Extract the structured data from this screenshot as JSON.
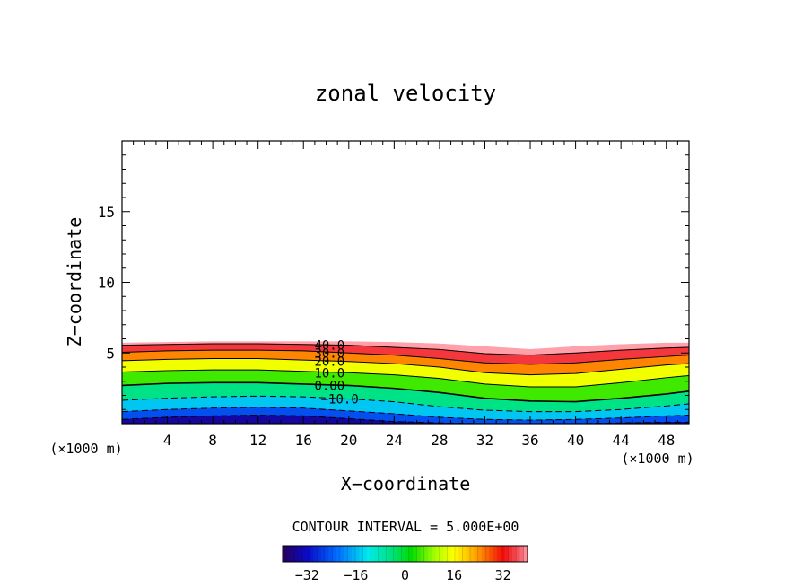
{
  "chart_data": {
    "type": "heatmap",
    "title": "zonal velocity",
    "xlabel": "X−coordinate",
    "ylabel": "Z−coordinate",
    "x_unit_left": "(×1000 m)",
    "x_unit_right": "(×1000 m)",
    "xlim": [
      0,
      50
    ],
    "ylim": [
      0,
      20
    ],
    "x_ticks": [
      "4",
      "8",
      "12",
      "16",
      "20",
      "24",
      "28",
      "32",
      "36",
      "40",
      "44",
      "48"
    ],
    "y_ticks": [
      "5",
      "10",
      "15"
    ],
    "contour_interval_text": "CONTOUR INTERVAL = 5.000E+00",
    "contour_labels": [
      "40.0",
      "30.0",
      "20.0",
      "10.0",
      "0.00",
      "−10.0"
    ],
    "colorbar": {
      "range": [
        -40,
        40
      ],
      "ticks": [
        "−32",
        "−16",
        "0",
        "16",
        "32"
      ]
    },
    "x": [
      0,
      4,
      8,
      12,
      16,
      20,
      24,
      28,
      32,
      36,
      40,
      44,
      48,
      50
    ],
    "top_of_field": [
      5.7,
      5.75,
      5.8,
      5.8,
      5.8,
      5.8,
      5.75,
      5.65,
      5.45,
      5.25,
      5.45,
      5.6,
      5.7,
      5.7
    ],
    "contours": [
      {
        "value": 40,
        "z": [
          5.55,
          5.6,
          5.65,
          5.65,
          5.6,
          5.55,
          5.4,
          5.25,
          4.95,
          4.85,
          5.0,
          5.2,
          5.35,
          5.4
        ]
      },
      {
        "value": 30,
        "z": [
          5.05,
          5.15,
          5.2,
          5.2,
          5.15,
          5.0,
          4.85,
          4.6,
          4.3,
          4.2,
          4.3,
          4.55,
          4.75,
          4.85
        ]
      },
      {
        "value": 20,
        "z": [
          4.45,
          4.55,
          4.6,
          4.6,
          4.5,
          4.4,
          4.25,
          4.0,
          3.6,
          3.45,
          3.55,
          3.85,
          4.15,
          4.25
        ]
      },
      {
        "value": 10,
        "z": [
          3.65,
          3.75,
          3.8,
          3.8,
          3.7,
          3.6,
          3.45,
          3.2,
          2.8,
          2.6,
          2.6,
          2.9,
          3.25,
          3.4
        ]
      },
      {
        "value": 0,
        "z": [
          2.7,
          2.85,
          2.9,
          2.9,
          2.8,
          2.7,
          2.5,
          2.2,
          1.8,
          1.6,
          1.55,
          1.8,
          2.1,
          2.3
        ]
      },
      {
        "value": -10,
        "z": [
          1.65,
          1.8,
          1.9,
          1.95,
          1.9,
          1.75,
          1.55,
          1.2,
          0.95,
          0.85,
          0.85,
          1.0,
          1.25,
          1.4
        ]
      },
      {
        "value": -20,
        "z": [
          0.85,
          1.0,
          1.1,
          1.15,
          1.1,
          0.9,
          0.7,
          0.45,
          0.3,
          0.25,
          0.3,
          0.4,
          0.55,
          0.6
        ]
      },
      {
        "value": -30,
        "z": [
          0.3,
          0.45,
          0.55,
          0.6,
          0.55,
          0.35,
          0.15,
          0.05,
          0.0,
          0.0,
          0.0,
          0.05,
          0.1,
          0.1
        ]
      }
    ]
  }
}
